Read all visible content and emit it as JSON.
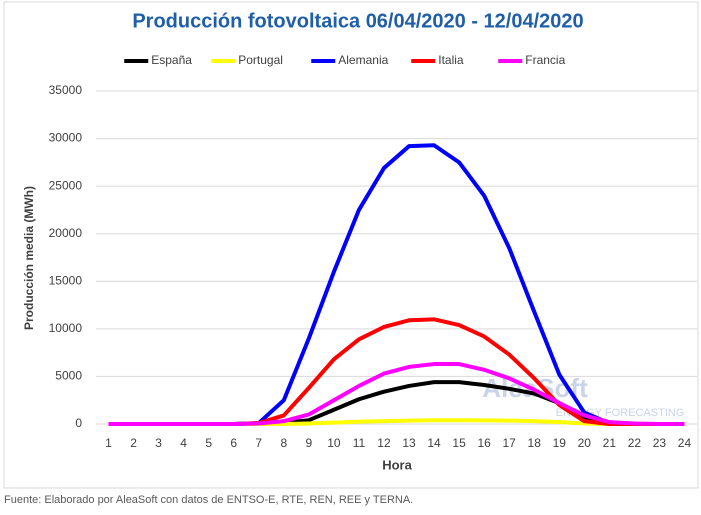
{
  "chart_data": {
    "type": "line",
    "title": "Producción fotovoltaica 06/04/2020 - 12/04/2020",
    "x_label": "Hora",
    "y_label": "Producción media (MWh)",
    "source": "Fuente: Elaborado por AleaSoft con datos de ENTSO-E, RTE, REN, REE y TERNA.",
    "watermark": [
      "AleaSoft",
      "ENERGY FORECASTING"
    ],
    "categories": [
      "1",
      "2",
      "3",
      "4",
      "5",
      "6",
      "7",
      "8",
      "9",
      "10",
      "11",
      "12",
      "13",
      "14",
      "15",
      "16",
      "17",
      "18",
      "19",
      "20",
      "21",
      "22",
      "23",
      "24"
    ],
    "ylim": [
      0,
      35000
    ],
    "yticks": [
      0,
      5000,
      10000,
      15000,
      20000,
      25000,
      30000,
      35000
    ],
    "grid": true,
    "legend": "top",
    "series": [
      {
        "name": "España",
        "color": "#000000",
        "values": [
          0,
          0,
          0,
          0,
          0,
          0,
          0,
          100,
          400,
          1500,
          2600,
          3400,
          4000,
          4400,
          4400,
          4100,
          3700,
          3200,
          2200,
          700,
          50,
          0,
          0,
          0
        ]
      },
      {
        "name": "Portugal",
        "color": "#ffff00",
        "values": [
          0,
          0,
          0,
          0,
          0,
          0,
          0,
          0,
          50,
          150,
          250,
          300,
          350,
          400,
          400,
          380,
          350,
          300,
          200,
          50,
          0,
          0,
          0,
          0
        ]
      },
      {
        "name": "Alemania",
        "color": "#0000ff",
        "values": [
          0,
          0,
          0,
          0,
          0,
          0,
          100,
          2500,
          9000,
          16000,
          22500,
          26900,
          29200,
          29300,
          27500,
          24000,
          18500,
          11800,
          5200,
          1200,
          100,
          0,
          0,
          0
        ]
      },
      {
        "name": "Italia",
        "color": "#ff0000",
        "values": [
          0,
          0,
          0,
          0,
          0,
          0,
          100,
          900,
          3800,
          6800,
          8900,
          10200,
          10900,
          11000,
          10400,
          9200,
          7300,
          4800,
          2000,
          300,
          0,
          0,
          0,
          0
        ]
      },
      {
        "name": "Francia",
        "color": "#ff00ff",
        "values": [
          0,
          0,
          0,
          0,
          0,
          0,
          50,
          300,
          1000,
          2500,
          4000,
          5300,
          6000,
          6300,
          6300,
          5700,
          4800,
          3600,
          2200,
          900,
          200,
          50,
          0,
          0
        ]
      }
    ]
  }
}
